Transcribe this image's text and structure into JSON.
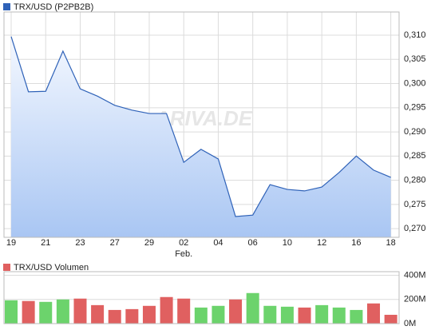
{
  "chart_data": [
    {
      "type": "area",
      "legend": "TRX/USD (P2PB2B)",
      "color": "#2f62b8",
      "watermark": "ARIVA.DE",
      "categories": [
        "19",
        null,
        "21",
        null,
        "23",
        null,
        "27",
        null,
        "29",
        null,
        "02",
        null,
        "04",
        null,
        "06",
        null,
        "10",
        null,
        "12",
        null,
        "16",
        null,
        "18"
      ],
      "annotation": "Feb.",
      "series": [
        {
          "name": "TRX/USD (P2PB2B)",
          "color": "#2f62b8",
          "values": [
            0.3097,
            0.2983,
            0.2984,
            0.3067,
            0.2989,
            0.2974,
            0.2955,
            0.2945,
            0.2938,
            0.2938,
            0.2837,
            0.2864,
            0.2844,
            0.2725,
            0.2728,
            0.2791,
            0.2781,
            0.2778,
            0.2786,
            0.2816,
            0.285,
            0.2821,
            0.2806
          ]
        }
      ],
      "ylim": [
        0.2682,
        0.3148
      ],
      "yticks": [
        {
          "value": 0.27,
          "label": "0,270"
        },
        {
          "value": 0.275,
          "label": "0,275"
        },
        {
          "value": 0.28,
          "label": "0,280"
        },
        {
          "value": 0.285,
          "label": "0,285"
        },
        {
          "value": 0.29,
          "label": "0,290"
        },
        {
          "value": 0.295,
          "label": "0,295"
        },
        {
          "value": 0.3,
          "label": "0,300"
        },
        {
          "value": 0.305,
          "label": "0,305"
        },
        {
          "value": 0.31,
          "label": "0,310"
        }
      ],
      "grid": true
    },
    {
      "type": "bar",
      "legend": "TRX/USD Volumen",
      "color": "#e06060",
      "series": [
        {
          "name": "TRX/USD Volumen",
          "values": [
            193,
            187,
            180,
            200,
            207,
            153,
            113,
            120,
            147,
            220,
            207,
            133,
            147,
            200,
            253,
            147,
            140,
            133,
            153,
            133,
            113,
            167,
            73
          ],
          "colors": [
            "#6cd36c",
            "#e06060",
            "#6cd36c",
            "#6cd36c",
            "#e06060",
            "#e06060",
            "#e06060",
            "#e06060",
            "#e06060",
            "#e06060",
            "#e06060",
            "#6cd36c",
            "#6cd36c",
            "#e06060",
            "#6cd36c",
            "#6cd36c",
            "#6cd36c",
            "#e06060",
            "#6cd36c",
            "#6cd36c",
            "#6cd36c",
            "#e06060",
            "#e06060"
          ]
        }
      ],
      "ylim": [
        0,
        430
      ],
      "yticks": [
        {
          "value": 0,
          "label": "0M"
        },
        {
          "value": 200,
          "label": "200M"
        },
        {
          "value": 400,
          "label": "400M"
        }
      ],
      "grid": true
    }
  ]
}
